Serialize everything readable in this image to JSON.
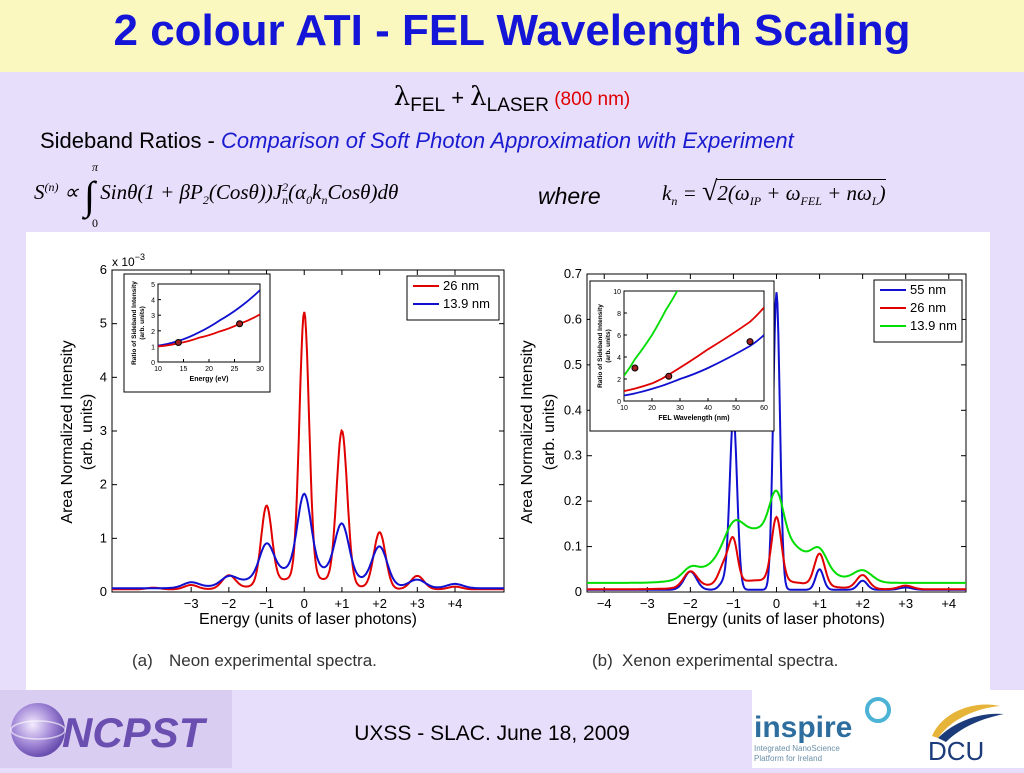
{
  "slide": {
    "title": "2 colour ATI - FEL Wavelength Scaling",
    "eq_lambda": "λ",
    "eq_fel_sub": "FEL",
    "eq_plus": " + ",
    "eq_laser_sub": "LASER",
    "eq_laser_note": " (800 nm)",
    "subtitle_prefix": "Sideband Ratios - ",
    "subtitle_emph": "Comparison of Soft Photon Approximation with Experiment",
    "where": "where",
    "footer": "UXSS - SLAC. June 18, 2009",
    "logos": [
      "NCPST",
      "inspire",
      "Integrated NanoScience",
      "Platform for Ireland",
      "DCU"
    ]
  },
  "colors": {
    "red": "#e00000",
    "blue": "#1010d0",
    "green": "#00dd00",
    "title": "#1515d8"
  },
  "chart_data": [
    {
      "type": "line",
      "caption_tag": "(a)",
      "caption": "Neon experimental spectra.",
      "xlabel": "Energy (units of laser photons)",
      "ylabel": "Area Normalized Intensity",
      "ylabel2": "(arb. units)",
      "y_multiplier": "x 10",
      "y_multiplier_exp": "−3",
      "ylim": [
        0,
        6
      ],
      "xlim": [
        -5.1,
        5.3
      ],
      "yticks": [
        "0",
        "1",
        "2",
        "3",
        "4",
        "5",
        "6"
      ],
      "xticks": [
        [
          "-3",
          "−3"
        ],
        [
          "-2",
          "−2"
        ],
        [
          "-1",
          "−1"
        ],
        [
          "0",
          "0"
        ],
        [
          "1",
          "+1"
        ],
        [
          "2",
          "+2"
        ],
        [
          "3",
          "+3"
        ],
        [
          "4",
          "+4"
        ]
      ],
      "legend": "top-right",
      "series": [
        {
          "name": "26 nm",
          "color": "#e00000",
          "baseline": 0.05,
          "peaks": [
            [
              -4,
              0.03,
              0.25
            ],
            [
              -3,
              0.08,
              0.25
            ],
            [
              -2,
              0.25,
              0.25
            ],
            [
              -1,
              1.45,
              0.2
            ],
            [
              0,
              4.95,
              0.18
            ],
            [
              1,
              2.85,
              0.2
            ],
            [
              2,
              1.05,
              0.22
            ],
            [
              3,
              0.25,
              0.25
            ],
            [
              4,
              0.05,
              0.25
            ]
          ],
          "broad": [
            0.22,
            0,
            1.2
          ]
        },
        {
          "name": "13.9 nm",
          "color": "#1010d0",
          "baseline": 0.07,
          "peaks": [
            [
              -3,
              0.1,
              0.3
            ],
            [
              -2,
              0.15,
              0.28
            ],
            [
              -1,
              0.58,
              0.26
            ],
            [
              0,
              1.38,
              0.25
            ],
            [
              1,
              0.95,
              0.26
            ],
            [
              2,
              0.7,
              0.28
            ],
            [
              3,
              0.15,
              0.3
            ],
            [
              4,
              0.08,
              0.3
            ]
          ],
          "broad": [
            0.38,
            0,
            1.6
          ]
        }
      ],
      "inset": {
        "xlabel": "Energy (eV)",
        "ylabel": "Ratio of Sideband Intensity",
        "ylabel2": "(arb. units)",
        "xlim": [
          10,
          30
        ],
        "ylim": [
          0,
          5
        ],
        "xticks": [
          "10",
          "15",
          "20",
          "25",
          "30"
        ],
        "yticks": [
          "0",
          "1",
          "2",
          "3",
          "4",
          "5"
        ],
        "curves": [
          {
            "color": "#1010d0",
            "points": [
              [
                10,
                1.05
              ],
              [
                14,
                1.35
              ],
              [
                18,
                1.9
              ],
              [
                22,
                2.65
              ],
              [
                26,
                3.5
              ],
              [
                30,
                4.6
              ]
            ]
          },
          {
            "color": "#e00000",
            "points": [
              [
                10,
                1.0
              ],
              [
                14,
                1.2
              ],
              [
                18,
                1.55
              ],
              [
                22,
                1.95
              ],
              [
                26,
                2.45
              ],
              [
                30,
                3.05
              ]
            ]
          }
        ],
        "markers": [
          [
            14,
            1.25
          ],
          [
            26,
            2.45
          ]
        ]
      }
    },
    {
      "type": "line",
      "caption_tag": "(b)",
      "caption": "Xenon experimental spectra.",
      "xlabel": "Energy (units of laser photons)",
      "ylabel": "Area Normalized Intensity",
      "ylabel2": "(arb. units)",
      "ylim": [
        0,
        0.7
      ],
      "xlim": [
        -4.4,
        4.4
      ],
      "yticks": [
        "0",
        "0.1",
        "0.2",
        "0.3",
        "0.4",
        "0.5",
        "0.6",
        "0.7"
      ],
      "xticks": [
        [
          "-4",
          "−4"
        ],
        [
          "-3",
          "−3"
        ],
        [
          "-2",
          "−2"
        ],
        [
          "-1",
          "−1"
        ],
        [
          "0",
          "0"
        ],
        [
          "1",
          "+1"
        ],
        [
          "2",
          "+2"
        ],
        [
          "3",
          "+3"
        ],
        [
          "4",
          "+4"
        ]
      ],
      "legend": "top-right",
      "series": [
        {
          "name": "55 nm",
          "color": "#1010d0",
          "baseline": 0.005,
          "peaks": [
            [
              -2,
              0.04,
              0.2
            ],
            [
              -1.2,
              0.02,
              0.15
            ],
            [
              -1,
              0.38,
              0.12
            ],
            [
              0,
              0.655,
              0.11
            ],
            [
              1,
              0.045,
              0.13
            ],
            [
              2,
              0.02,
              0.15
            ],
            [
              3,
              0.005,
              0.2
            ]
          ],
          "broad": [
            0,
            0,
            1
          ]
        },
        {
          "name": "26 nm",
          "color": "#e00000",
          "baseline": 0.006,
          "peaks": [
            [
              -2,
              0.035,
              0.22
            ],
            [
              -1.2,
              0.045,
              0.18
            ],
            [
              -1,
              0.085,
              0.14
            ],
            [
              0,
              0.14,
              0.16
            ],
            [
              1,
              0.07,
              0.17
            ],
            [
              2,
              0.03,
              0.2
            ],
            [
              3,
              0.008,
              0.22
            ]
          ],
          "broad": [
            0.02,
            -0.3,
            1.4
          ]
        },
        {
          "name": "13.9 nm",
          "color": "#00dd00",
          "baseline": 0.02,
          "peaks": [
            [
              -2,
              0.02,
              0.25
            ],
            [
              -1,
              0.05,
              0.3
            ],
            [
              0,
              0.09,
              0.22
            ],
            [
              1,
              0.04,
              0.25
            ],
            [
              2,
              0.025,
              0.3
            ]
          ],
          "broad": [
            0.12,
            -0.3,
            1.2
          ]
        }
      ],
      "inset": {
        "xlabel": "FEL Wavelength (nm)",
        "ylabel": "Ratio of Sideband Intensity",
        "ylabel2": "(arb. units)",
        "xlim": [
          10,
          60
        ],
        "ylim": [
          0,
          10
        ],
        "xticks": [
          "10",
          "20",
          "30",
          "40",
          "50",
          "60"
        ],
        "yticks": [
          "0",
          "2",
          "4",
          "6",
          "8",
          "10"
        ],
        "curves": [
          {
            "color": "#00dd00",
            "points": [
              [
                10,
                2.3
              ],
              [
                13.9,
                3.8
              ],
              [
                20,
                6.0
              ],
              [
                25,
                8.3
              ],
              [
                29,
                10.0
              ]
            ]
          },
          {
            "color": "#e00000",
            "points": [
              [
                10,
                0.9
              ],
              [
                20,
                1.6
              ],
              [
                26,
                2.4
              ],
              [
                40,
                4.7
              ],
              [
                55,
                7.2
              ],
              [
                60,
                8.5
              ]
            ]
          },
          {
            "color": "#1010d0",
            "points": [
              [
                10,
                0.5
              ],
              [
                20,
                1.1
              ],
              [
                30,
                2.0
              ],
              [
                40,
                3.0
              ],
              [
                55,
                5.0
              ],
              [
                60,
                6.0
              ]
            ]
          }
        ],
        "markers": [
          [
            13.9,
            3.0
          ],
          [
            26,
            2.25
          ],
          [
            55,
            5.4
          ]
        ]
      }
    }
  ]
}
